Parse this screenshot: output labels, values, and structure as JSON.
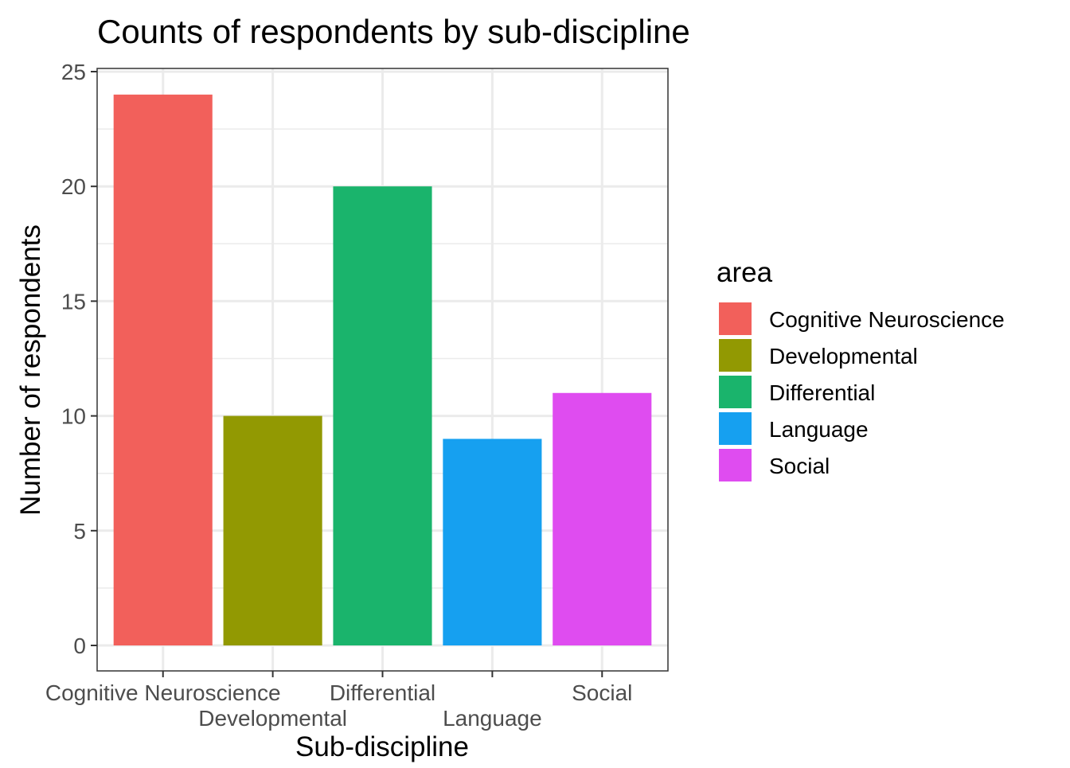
{
  "chart_data": {
    "type": "bar",
    "title": "Counts of respondents by sub-discipline",
    "xlabel": "Sub-discipline",
    "ylabel": "Number of respondents",
    "categories": [
      "Cognitive Neuroscience",
      "Developmental",
      "Differential",
      "Language",
      "Social"
    ],
    "values": [
      24,
      10,
      20,
      9,
      11
    ],
    "colors": [
      "#F8766D",
      "#A3A500",
      "#00BF7D",
      "#00B0F6",
      "#E76BF3"
    ],
    "bar_colors_rendered": [
      "#F2605B",
      "#929902",
      "#1AB46C",
      "#16A0F0",
      "#DF4CF0"
    ],
    "ylim": [
      0,
      25
    ],
    "yticks": [
      0,
      5,
      10,
      15,
      20,
      25
    ],
    "grid": true,
    "legend": {
      "title": "area",
      "position": "right",
      "entries": [
        "Cognitive Neuroscience",
        "Developmental",
        "Differential",
        "Language",
        "Social"
      ]
    }
  }
}
